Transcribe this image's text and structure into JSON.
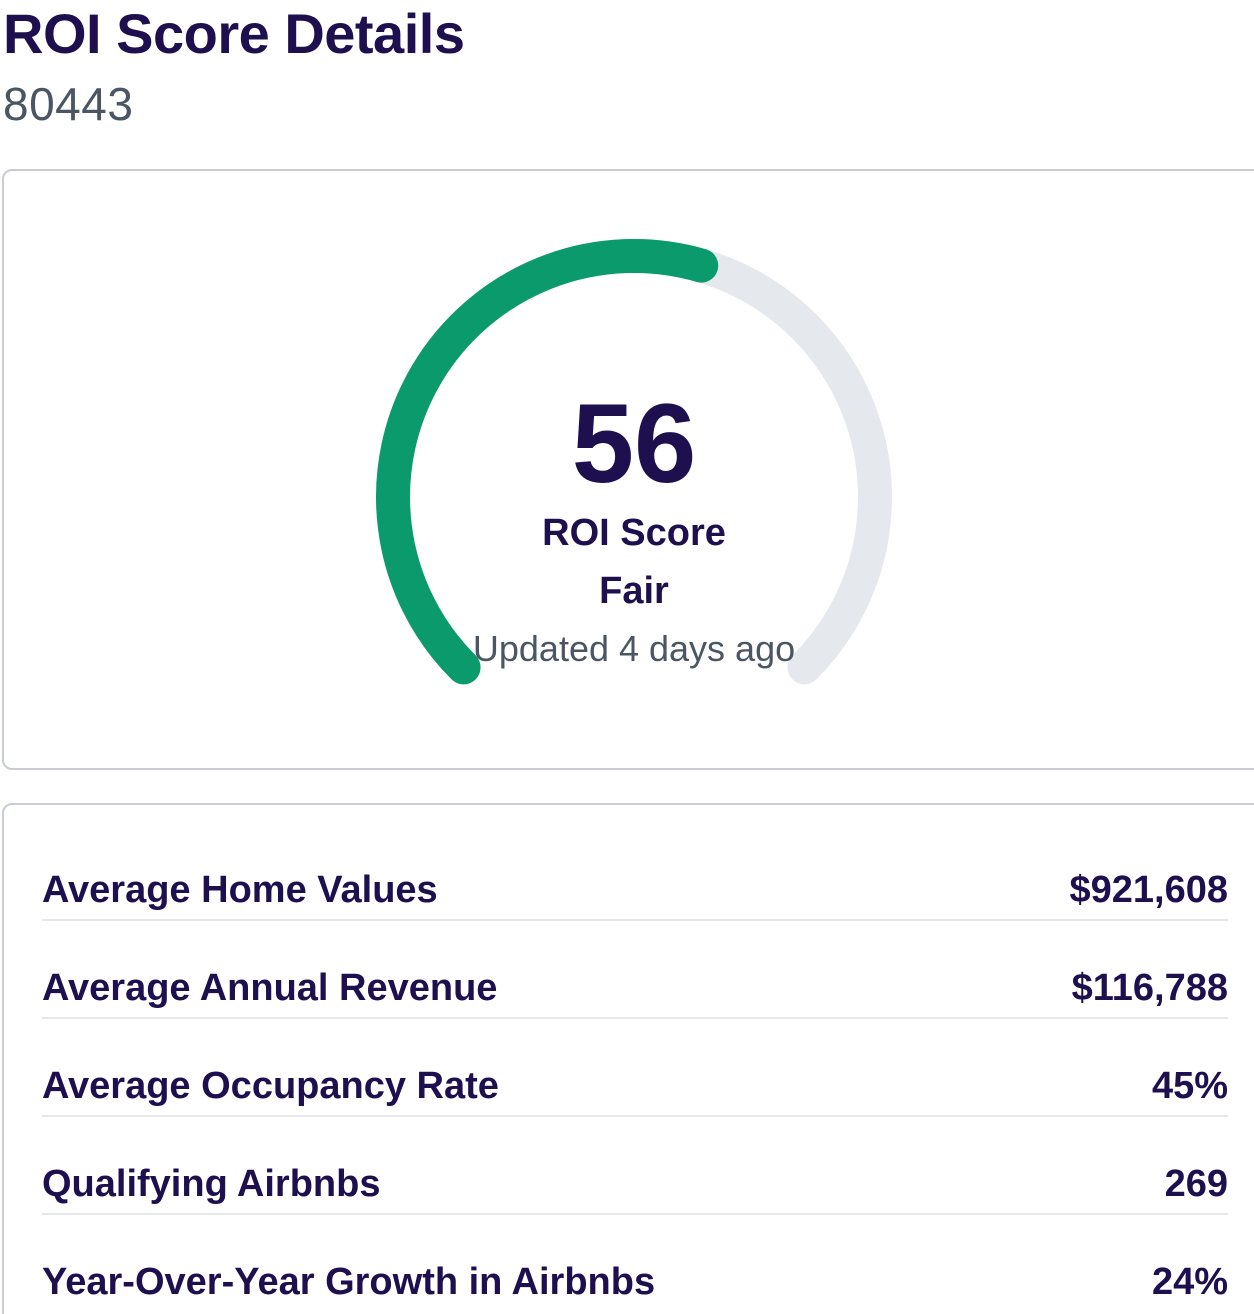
{
  "header": {
    "title": "ROI Score Details",
    "zip_code": "80443"
  },
  "score_card": {
    "score_value": "56",
    "score": 56,
    "score_max": 100,
    "score_label": "ROI Score",
    "rating": "Fair",
    "updated_text": "Updated 4 days ago",
    "colors": {
      "progress": "#0a9a6b",
      "track": "#e5e9ed",
      "text": "#1e0f4f"
    }
  },
  "stats": [
    {
      "label": "Average Home Values",
      "value": "$921,608"
    },
    {
      "label": "Average Annual Revenue",
      "value": "$116,788"
    },
    {
      "label": "Average Occupancy Rate",
      "value": "45%"
    },
    {
      "label": "Qualifying Airbnbs",
      "value": "269"
    },
    {
      "label": "Year-Over-Year Growth in Airbnbs",
      "value": "24%"
    }
  ]
}
